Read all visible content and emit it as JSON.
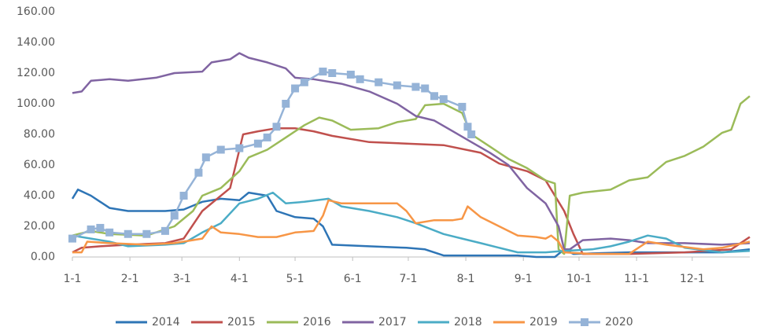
{
  "chart_data": {
    "type": "line",
    "xlim": [
      0,
      365
    ],
    "xticks": [
      {
        "value": 0,
        "label": "1-1"
      },
      {
        "value": 31,
        "label": "2-1"
      },
      {
        "value": 59,
        "label": "3-1"
      },
      {
        "value": 90,
        "label": "4-1"
      },
      {
        "value": 120,
        "label": "5-1"
      },
      {
        "value": 151,
        "label": "6-1"
      },
      {
        "value": 181,
        "label": "7-1"
      },
      {
        "value": 212,
        "label": "8-1"
      },
      {
        "value": 243,
        "label": "9-1"
      },
      {
        "value": 273,
        "label": "10-1"
      },
      {
        "value": 304,
        "label": "11-1"
      },
      {
        "value": 334,
        "label": "12-1"
      }
    ],
    "ylim": [
      0,
      160
    ],
    "yticks": [
      {
        "value": 0,
        "label": "0.00"
      },
      {
        "value": 20,
        "label": "20.00"
      },
      {
        "value": 40,
        "label": "40.00"
      },
      {
        "value": 60,
        "label": "60.00"
      },
      {
        "value": 80,
        "label": "80.00"
      },
      {
        "value": 100,
        "label": "100.00"
      },
      {
        "value": 120,
        "label": "120.00"
      },
      {
        "value": 140,
        "label": "140.00"
      },
      {
        "value": 160,
        "label": "160.00"
      }
    ],
    "legend": "bottom",
    "series": [
      {
        "name": "2014",
        "color": "#2e75b6",
        "x": [
          0,
          3,
          10,
          20,
          30,
          50,
          60,
          70,
          80,
          90,
          95,
          105,
          110,
          120,
          130,
          135,
          140,
          160,
          180,
          190,
          200,
          240,
          250,
          260,
          265,
          270,
          300,
          330,
          350,
          365
        ],
        "values": [
          38,
          44,
          40,
          32,
          30,
          30,
          31,
          36,
          38,
          37,
          42,
          40,
          30,
          26,
          25,
          20,
          8,
          7,
          6,
          5,
          1,
          1,
          0,
          0,
          5,
          2,
          3,
          3,
          3,
          5
        ]
      },
      {
        "name": "2015",
        "color": "#c0504d",
        "x": [
          0,
          5,
          15,
          30,
          50,
          60,
          70,
          85,
          88,
          92,
          100,
          110,
          120,
          130,
          140,
          160,
          180,
          200,
          220,
          230,
          245,
          255,
          260,
          265,
          270,
          275,
          300,
          330,
          355,
          365
        ],
        "values": [
          3,
          6,
          7,
          8,
          9,
          12,
          30,
          45,
          60,
          80,
          82,
          84,
          84,
          82,
          79,
          75,
          74,
          73,
          68,
          61,
          56,
          50,
          40,
          30,
          15,
          2,
          2,
          3,
          5,
          13
        ]
      },
      {
        "name": "2016",
        "color": "#9bbb59",
        "x": [
          0,
          10,
          20,
          40,
          55,
          65,
          70,
          80,
          90,
          95,
          105,
          115,
          125,
          133,
          140,
          150,
          165,
          175,
          185,
          190,
          200,
          210,
          215,
          225,
          235,
          245,
          255,
          260,
          262,
          265,
          268,
          275,
          290,
          300,
          310,
          320,
          330,
          340,
          350,
          355,
          360,
          365
        ],
        "values": [
          14,
          17,
          15,
          14,
          20,
          30,
          40,
          45,
          56,
          65,
          70,
          78,
          86,
          91,
          89,
          83,
          84,
          88,
          90,
          99,
          100,
          94,
          80,
          72,
          64,
          58,
          50,
          48,
          5,
          2,
          40,
          42,
          44,
          50,
          52,
          62,
          66,
          72,
          81,
          83,
          100,
          105
        ]
      },
      {
        "name": "2017",
        "color": "#8064a2",
        "x": [
          0,
          5,
          10,
          20,
          30,
          45,
          55,
          70,
          75,
          85,
          90,
          95,
          105,
          115,
          120,
          130,
          145,
          160,
          175,
          185,
          195,
          205,
          215,
          225,
          235,
          245,
          255,
          262,
          265,
          268,
          275,
          290,
          300,
          310,
          330,
          350,
          365
        ],
        "values": [
          107,
          108,
          115,
          116,
          115,
          117,
          120,
          121,
          127,
          129,
          133,
          130,
          127,
          123,
          117,
          116,
          113,
          108,
          100,
          92,
          89,
          82,
          75,
          68,
          60,
          45,
          35,
          20,
          5,
          5,
          11,
          12,
          11,
          9,
          9,
          8,
          9
        ]
      },
      {
        "name": "2018",
        "color": "#4bacc6",
        "x": [
          0,
          10,
          20,
          30,
          50,
          60,
          70,
          80,
          90,
          100,
          108,
          115,
          125,
          138,
          145,
          160,
          175,
          185,
          200,
          210,
          220,
          230,
          240,
          255,
          265,
          280,
          290,
          300,
          310,
          320,
          330,
          350,
          365
        ],
        "values": [
          14,
          12,
          10,
          7,
          8,
          9,
          16,
          22,
          35,
          38,
          42,
          35,
          36,
          38,
          33,
          30,
          26,
          22,
          15,
          12,
          9,
          6,
          3,
          3,
          4,
          5,
          7,
          10,
          14,
          12,
          6,
          3,
          4
        ]
      },
      {
        "name": "2019",
        "color": "#f79646",
        "x": [
          0,
          5,
          8,
          20,
          40,
          55,
          70,
          75,
          80,
          90,
          100,
          110,
          120,
          130,
          135,
          138,
          145,
          160,
          175,
          180,
          185,
          195,
          205,
          210,
          213,
          220,
          230,
          240,
          250,
          255,
          258,
          262,
          265,
          280,
          300,
          310,
          320,
          340,
          350,
          365
        ],
        "values": [
          3,
          3,
          10,
          9,
          8,
          9,
          12,
          20,
          16,
          15,
          13,
          13,
          16,
          17,
          27,
          37,
          35,
          35,
          35,
          30,
          22,
          24,
          24,
          25,
          33,
          26,
          20,
          14,
          13,
          12,
          14,
          10,
          3,
          2,
          2,
          10,
          8,
          5,
          6,
          10
        ]
      },
      {
        "name": "2020",
        "color": "#95b3d7",
        "marker": "square",
        "x": [
          0,
          10,
          15,
          20,
          30,
          40,
          50,
          55,
          60,
          68,
          72,
          80,
          90,
          100,
          105,
          110,
          115,
          120,
          125,
          135,
          140,
          150,
          155,
          165,
          175,
          185,
          190,
          195,
          200,
          210,
          213,
          215
        ],
        "values": [
          12,
          18,
          19,
          16,
          15,
          15,
          17,
          27,
          40,
          55,
          65,
          70,
          71,
          74,
          78,
          85,
          100,
          110,
          114,
          121,
          120,
          119,
          116,
          114,
          112,
          111,
          110,
          105,
          103,
          98,
          85,
          80
        ]
      }
    ]
  }
}
